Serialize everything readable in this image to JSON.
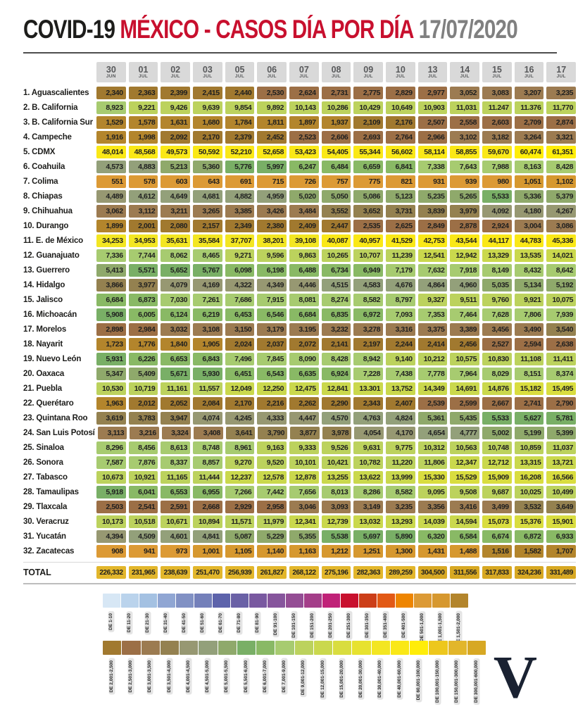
{
  "title": {
    "black": "COVID-19",
    "red": "MÉXICO - CASOS DÍA POR DÍA",
    "gray": "17/07/2020"
  },
  "logo_letter": "V",
  "colors": {
    "title_red": "#c8102e",
    "title_gray": "#808080",
    "header_box": "#d9d9d9",
    "rule": "#4e4e4e",
    "logo_navy": "#1a2232"
  },
  "chart_data": {
    "type": "heatmap",
    "title": "COVID-19 MÉXICO - CASOS DÍA POR DÍA 17/07/2020",
    "xlabel": "Fecha",
    "ylabel": "Estado",
    "legend_position": "bottom",
    "columns": [
      {
        "day": "30",
        "month": "JUN"
      },
      {
        "day": "01",
        "month": "JUL"
      },
      {
        "day": "02",
        "month": "JUL"
      },
      {
        "day": "03",
        "month": "JUL"
      },
      {
        "day": "05",
        "month": "JUL"
      },
      {
        "day": "06",
        "month": "JUL"
      },
      {
        "day": "07",
        "month": "JUL"
      },
      {
        "day": "08",
        "month": "JUL"
      },
      {
        "day": "09",
        "month": "JUL"
      },
      {
        "day": "10",
        "month": "JUL"
      },
      {
        "day": "13",
        "month": "JUL"
      },
      {
        "day": "14",
        "month": "JUL"
      },
      {
        "day": "15",
        "month": "JUL"
      },
      {
        "day": "16",
        "month": "JUL"
      },
      {
        "day": "17",
        "month": "JUL"
      }
    ],
    "rows": [
      {
        "name": "1. Aguascalientes",
        "values": [
          "2,340",
          "2,363",
          "2,399",
          "2,415",
          "2,440",
          "2,530",
          "2,624",
          "2,731",
          "2,775",
          "2,829",
          "2,977",
          "3,052",
          "3,083",
          "3,207",
          "3,235"
        ]
      },
      {
        "name": "2. B. California",
        "values": [
          "8,923",
          "9,221",
          "9,426",
          "9,639",
          "9,854",
          "9,892",
          "10,143",
          "10,286",
          "10,429",
          "10,649",
          "10,903",
          "11,031",
          "11.247",
          "11.376",
          "11,770"
        ]
      },
      {
        "name": "3. B. California Sur",
        "values": [
          "1,529",
          "1,578",
          "1,631",
          "1,680",
          "1,784",
          "1,811",
          "1,897",
          "1,937",
          "2,109",
          "2,176",
          "2,507",
          "2,558",
          "2,603",
          "2,709",
          "2,874"
        ]
      },
      {
        "name": "4. Campeche",
        "values": [
          "1,916",
          "1,998",
          "2,092",
          "2,170",
          "2,379",
          "2,452",
          "2,523",
          "2,606",
          "2,693",
          "2,764",
          "2,966",
          "3,102",
          "3,182",
          "3,264",
          "3,321"
        ]
      },
      {
        "name": "5. CDMX",
        "values": [
          "48,014",
          "48,568",
          "49,573",
          "50,592",
          "52,210",
          "52,658",
          "53,423",
          "54,405",
          "55,344",
          "56,602",
          "58,114",
          "58,855",
          "59,670",
          "60,474",
          "61,351"
        ]
      },
      {
        "name": "6. Coahuila",
        "values": [
          "4,573",
          "4,883",
          "5,213",
          "5,360",
          "5,776",
          "5,997",
          "6,247",
          "6,484",
          "6,659",
          "6,841",
          "7,338",
          "7,643",
          "7,988",
          "8,163",
          "8,428"
        ]
      },
      {
        "name": "7. Colima",
        "values": [
          "551",
          "578",
          "603",
          "643",
          "691",
          "715",
          "726",
          "757",
          "775",
          "821",
          "931",
          "939",
          "980",
          "1,051",
          "1,102"
        ]
      },
      {
        "name": "8. Chiapas",
        "values": [
          "4,489",
          "4,612",
          "4,649",
          "4,681",
          "4,882",
          "4,959",
          "5,020",
          "5,050",
          "5,086",
          "5,123",
          "5,235",
          "5,265",
          "5,533",
          "5,336",
          "5,379"
        ]
      },
      {
        "name": "9. Chihuahua",
        "values": [
          "3,062",
          "3,112",
          "3,211",
          "3,265",
          "3,385",
          "3,426",
          "3,484",
          "3,552",
          "3,652",
          "3,731",
          "3,839",
          "3,979",
          "4,092",
          "4,180",
          "4,267"
        ]
      },
      {
        "name": "10. Durango",
        "values": [
          "1,899",
          "2,001",
          "2,080",
          "2,157",
          "2,349",
          "2,380",
          "2,409",
          "2,447",
          "2,535",
          "2,625",
          "2,849",
          "2,878",
          "2,924",
          "3,004",
          "3,086"
        ]
      },
      {
        "name": "11. E. de México",
        "values": [
          "34,253",
          "34,953",
          "35,631",
          "35,584",
          "37,707",
          "38,201",
          "39,108",
          "40,087",
          "40,957",
          "41,529",
          "42,753",
          "43,544",
          "44,117",
          "44,783",
          "45,336"
        ]
      },
      {
        "name": "12. Guanajuato",
        "values": [
          "7,336",
          "7,744",
          "8,062",
          "8,465",
          "9,271",
          "9,596",
          "9,863",
          "10,265",
          "10,707",
          "11,239",
          "12,541",
          "12,942",
          "13,329",
          "13,535",
          "14,021"
        ]
      },
      {
        "name": "13. Guerrero",
        "values": [
          "5,413",
          "5,571",
          "5,652",
          "5,767",
          "6,098",
          "6,198",
          "6,488",
          "6,734",
          "6,949",
          "7,179",
          "7,632",
          "7,918",
          "8,149",
          "8,432",
          "8,642"
        ]
      },
      {
        "name": "14. Hidalgo",
        "values": [
          "3,866",
          "3,977",
          "4,079",
          "4,169",
          "4,322",
          "4,349",
          "4,446",
          "4,515",
          "4,583",
          "4,676",
          "4,864",
          "4,960",
          "5,035",
          "5,134",
          "5,192"
        ]
      },
      {
        "name": "15. Jalisco",
        "values": [
          "6,684",
          "6,873",
          "7,030",
          "7,261",
          "7,686",
          "7,915",
          "8,081",
          "8,274",
          "8,582",
          "8,797",
          "9,327",
          "9,511",
          "9,760",
          "9,921",
          "10,075"
        ]
      },
      {
        "name": "16. Michoacán",
        "values": [
          "5,908",
          "6,005",
          "6,124",
          "6,219",
          "6,453",
          "6,546",
          "6,684",
          "6,835",
          "6,972",
          "7,093",
          "7,353",
          "7,464",
          "7,628",
          "7,806",
          "7,939"
        ]
      },
      {
        "name": "17. Morelos",
        "values": [
          "2,898",
          "2,984",
          "3,032",
          "3,108",
          "3,150",
          "3,179",
          "3.195",
          "3,232",
          "3,278",
          "3,316",
          "3,375",
          "3,389",
          "3,456",
          "3,490",
          "3,540"
        ]
      },
      {
        "name": "18. Nayarit",
        "values": [
          "1,723",
          "1,776",
          "1,840",
          "1,905",
          "2,024",
          "2,037",
          "2,072",
          "2,141",
          "2,197",
          "2,244",
          "2,414",
          "2,456",
          "2,527",
          "2,594",
          "2,638"
        ]
      },
      {
        "name": "19. Nuevo León",
        "values": [
          "5,931",
          "6,226",
          "6,653",
          "6,843",
          "7,496",
          "7,845",
          "8,090",
          "8,428",
          "8,942",
          "9,140",
          "10,212",
          "10,575",
          "10,830",
          "11,108",
          "11,411"
        ]
      },
      {
        "name": "20. Oaxaca",
        "values": [
          "5,347",
          "5,409",
          "5,671",
          "5,930",
          "6,451",
          "6,543",
          "6,635",
          "6,924",
          "7,228",
          "7,438",
          "7,778",
          "7,964",
          "8,029",
          "8,151",
          "8,374"
        ]
      },
      {
        "name": "21. Puebla",
        "values": [
          "10,530",
          "10,719",
          "11,161",
          "11,557",
          "12,049",
          "12,250",
          "12,475",
          "12,841",
          "13.301",
          "13,752",
          "14,349",
          "14,691",
          "14,876",
          "15,182",
          "15,495"
        ]
      },
      {
        "name": "22. Querétaro",
        "values": [
          "1,963",
          "2,012",
          "2,052",
          "2,084",
          "2,170",
          "2,216",
          "2,262",
          "2,290",
          "2,343",
          "2,407",
          "2,539",
          "2,599",
          "2,667",
          "2,741",
          "2,790"
        ]
      },
      {
        "name": "23. Quintana Roo",
        "values": [
          "3,619",
          "3,783",
          "3,947",
          "4,074",
          "4,245",
          "4,333",
          "4,447",
          "4,570",
          "4,763",
          "4,824",
          "5,361",
          "5,435",
          "5,533",
          "5,627",
          "5,781"
        ]
      },
      {
        "name": "24. San Luis Potosí",
        "values": [
          "3,113",
          "3,216",
          "3,324",
          "3,408",
          "3,641",
          "3,790",
          "3,877",
          "3,978",
          "4,054",
          "4,170",
          "4,654",
          "4,777",
          "5,002",
          "5,199",
          "5,399"
        ]
      },
      {
        "name": "25. Sinaloa",
        "values": [
          "8,296",
          "8,456",
          "8,613",
          "8,748",
          "8,961",
          "9,163",
          "9,333",
          "9,526",
          "9,631",
          "9,775",
          "10,312",
          "10,563",
          "10,748",
          "10,859",
          "11,037"
        ]
      },
      {
        "name": "26. Sonora",
        "values": [
          "7,587",
          "7,876",
          "8,337",
          "8,857",
          "9,270",
          "9,520",
          "10,101",
          "10,421",
          "10,782",
          "11,220",
          "11,806",
          "12,347",
          "12,712",
          "13,315",
          "13,721"
        ]
      },
      {
        "name": "27. Tabasco",
        "values": [
          "10,673",
          "10,921",
          "11,165",
          "11,444",
          "12,237",
          "12,578",
          "12,878",
          "13,255",
          "13,622",
          "13,999",
          "15,330",
          "15,529",
          "15,909",
          "16,208",
          "16,566"
        ]
      },
      {
        "name": "28. Tamaulipas",
        "values": [
          "5,918",
          "6,041",
          "6,553",
          "6,955",
          "7,266",
          "7,442",
          "7,656",
          "8,013",
          "8,286",
          "8,582",
          "9,095",
          "9,508",
          "9,687",
          "10,025",
          "10,499"
        ]
      },
      {
        "name": "29. Tlaxcala",
        "values": [
          "2,503",
          "2,541",
          "2,591",
          "2,668",
          "2,929",
          "2,958",
          "3,046",
          "3,093",
          "3,149",
          "3,235",
          "3,356",
          "3,416",
          "3,499",
          "3,532",
          "3,649"
        ]
      },
      {
        "name": "30. Veracruz",
        "values": [
          "10,173",
          "10,518",
          "10,671",
          "10,894",
          "11,571",
          "11,979",
          "12,341",
          "12,739",
          "13,032",
          "13,293",
          "14,039",
          "14,594",
          "15,073",
          "15,376",
          "15,901"
        ]
      },
      {
        "name": "31. Yucatán",
        "values": [
          "4,394",
          "4,509",
          "4,601",
          "4,841",
          "5,087",
          "5,229",
          "5,355",
          "5,538",
          "5,697",
          "5,890",
          "6,320",
          "6,584",
          "6,674",
          "6,872",
          "6,933"
        ]
      },
      {
        "name": "32. Zacatecas",
        "values": [
          "908",
          "941",
          "973",
          "1,001",
          "1,105",
          "1,140",
          "1,163",
          "1,212",
          "1,251",
          "1,300",
          "1,431",
          "1,488",
          "1,516",
          "1,582",
          "1,707"
        ]
      }
    ],
    "total": {
      "label": "TOTAL",
      "values": [
        "226,332",
        "231,965",
        "238,639",
        "251,470",
        "256,939",
        "261,827",
        "268,122",
        "275,196",
        "282,363",
        "289,259",
        "304,500",
        "311,556",
        "317,833",
        "324,236",
        "331,489"
      ]
    },
    "legend_rows": [
      [
        {
          "label": "DE 1-10",
          "min": 1,
          "max": 10,
          "color": "#d7e7f5"
        },
        {
          "label": "DE 11-20",
          "min": 11,
          "max": 20,
          "color": "#bad3ec"
        },
        {
          "label": "DE 21-30",
          "min": 21,
          "max": 30,
          "color": "#a4c1e2"
        },
        {
          "label": "DE 31-40",
          "min": 31,
          "max": 40,
          "color": "#90a6d3"
        },
        {
          "label": "DE 41-50",
          "min": 41,
          "max": 50,
          "color": "#8191c4"
        },
        {
          "label": "DE 51-60",
          "min": 51,
          "max": 60,
          "color": "#7480ba"
        },
        {
          "label": "DE 61-70",
          "min": 61,
          "max": 70,
          "color": "#5d63ab"
        },
        {
          "label": "DE 71-80",
          "min": 71,
          "max": 80,
          "color": "#6a61a6"
        },
        {
          "label": "DE 81-90",
          "min": 81,
          "max": 90,
          "color": "#7959a0"
        },
        {
          "label": "DE 91-100",
          "min": 91,
          "max": 100,
          "color": "#86559c"
        },
        {
          "label": "DE 101-150",
          "min": 101,
          "max": 150,
          "color": "#944d94"
        },
        {
          "label": "DE 151-200",
          "min": 151,
          "max": 200,
          "color": "#a43e89"
        },
        {
          "label": "DE 201-250",
          "min": 201,
          "max": 250,
          "color": "#c02278"
        },
        {
          "label": "DE 251-300",
          "min": 251,
          "max": 300,
          "color": "#c8102e"
        },
        {
          "label": "DE 301-350",
          "min": 301,
          "max": 350,
          "color": "#cc3e18"
        },
        {
          "label": "DE 351-400",
          "min": 351,
          "max": 400,
          "color": "#e25915"
        },
        {
          "label": "DE 401-500",
          "min": 401,
          "max": 500,
          "color": "#ee8500"
        },
        {
          "label": "DE 501-1,000",
          "min": 501,
          "max": 1000,
          "color": "#dc9a35"
        },
        {
          "label": "DE 1,001-1,500",
          "min": 1001,
          "max": 1500,
          "color": "#d6982f"
        },
        {
          "label": "DE 1,501-2,000",
          "min": 1501,
          "max": 2000,
          "color": "#b3852c"
        }
      ],
      [
        {
          "label": "DE 2,001-2,500",
          "min": 2001,
          "max": 2500,
          "color": "#a1792f"
        },
        {
          "label": "DE 2,501-3,000",
          "min": 2501,
          "max": 3000,
          "color": "#9c6f46"
        },
        {
          "label": "DE 3,001-3,500",
          "min": 3001,
          "max": 3500,
          "color": "#9c7b51"
        },
        {
          "label": "DE 3,501-4,000",
          "min": 3501,
          "max": 4000,
          "color": "#948150"
        },
        {
          "label": "DE 4,001-4,500",
          "min": 4001,
          "max": 4500,
          "color": "#979872"
        },
        {
          "label": "DE 4,501-5,000",
          "min": 4501,
          "max": 5000,
          "color": "#93a07a"
        },
        {
          "label": "DE 5,001-5,500",
          "min": 5001,
          "max": 5500,
          "color": "#8fa96b"
        },
        {
          "label": "DE 5,501-6,000",
          "min": 5501,
          "max": 6000,
          "color": "#79af66"
        },
        {
          "label": "DE 6,001-7,000",
          "min": 6001,
          "max": 7000,
          "color": "#89b965"
        },
        {
          "label": "DE 7,001-9,000",
          "min": 7001,
          "max": 9000,
          "color": "#a7cb70"
        },
        {
          "label": "DE 9,001-12,000",
          "min": 9001,
          "max": 12000,
          "color": "#bcd25d"
        },
        {
          "label": "DE 12,001-15,000",
          "min": 12001,
          "max": 15000,
          "color": "#cad84d"
        },
        {
          "label": "DE 15,001-20,000",
          "min": 15001,
          "max": 20000,
          "color": "#d9dd3f"
        },
        {
          "label": "DE 20,001-30,000",
          "min": 20001,
          "max": 30000,
          "color": "#e7e22f"
        },
        {
          "label": "DE 30,001-40,000",
          "min": 30001,
          "max": 40000,
          "color": "#f3e622"
        },
        {
          "label": "DE 40,001-60,000",
          "min": 40001,
          "max": 60000,
          "color": "#fae817"
        },
        {
          "label": "DE 60,001-100,000",
          "min": 60001,
          "max": 100000,
          "color": "#ffed08"
        },
        {
          "label": "DE 100,001-150,000",
          "min": 100001,
          "max": 150000,
          "color": "#edc71d"
        },
        {
          "label": "DE 150,001-300,000",
          "min": 150001,
          "max": 300000,
          "color": "#e2b62b"
        },
        {
          "label": "DE 300,001-600,000",
          "min": 300001,
          "max": 600000,
          "color": "#d7a823"
        }
      ]
    ]
  }
}
